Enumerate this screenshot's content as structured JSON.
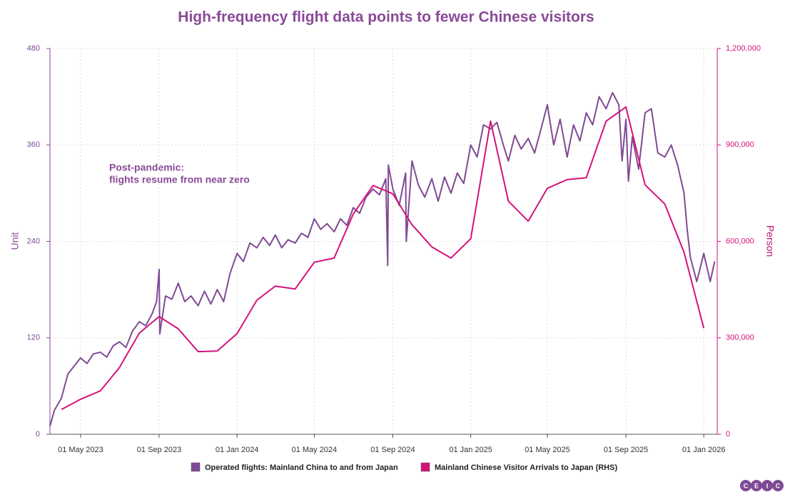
{
  "chart_data": {
    "type": "line",
    "title": "High-frequency flight data points to fewer Chinese visitors",
    "annotations": [
      "Post-pandemic:",
      "flights resume from near zero"
    ],
    "ylabel": "Unit",
    "y2label": "Person",
    "grid": true,
    "legend": "bottom",
    "logo": [
      "C",
      "E",
      "I",
      "C"
    ],
    "xlim": [
      "2023-03-14",
      "2026-01-22"
    ],
    "xticks": [
      {
        "value": "2023-05-01",
        "label": "01 May 2023"
      },
      {
        "value": "2023-09-01",
        "label": "01 Sep 2023"
      },
      {
        "value": "2024-01-01",
        "label": "01 Jan 2024"
      },
      {
        "value": "2024-05-01",
        "label": "01 May 2024"
      },
      {
        "value": "2024-09-01",
        "label": "01 Sep 2024"
      },
      {
        "value": "2025-01-01",
        "label": "01 Jan 2025"
      },
      {
        "value": "2025-05-01",
        "label": "01 May 2025"
      },
      {
        "value": "2025-09-01",
        "label": "01 Sep 2025"
      },
      {
        "value": "2026-01-01",
        "label": "01 Jan 2026"
      }
    ],
    "ylim": [
      0,
      480
    ],
    "yticks": [
      0,
      120,
      240,
      360,
      480
    ],
    "y2lim": [
      0,
      1200000
    ],
    "y2ticks": [
      0,
      {
        "value": 300000,
        "label": "300,000"
      },
      {
        "value": 600000,
        "label": "600,000"
      },
      {
        "value": 900000,
        "label": "900,000"
      },
      {
        "value": 1200000,
        "label": "1,200,000"
      }
    ],
    "series": [
      {
        "name": "Operated flights: Mainland China to and from Japan",
        "color": "#7f4a94",
        "x": [
          "2023-03-14",
          "2023-03-21",
          "2023-04-01",
          "2023-04-11",
          "2023-04-21",
          "2023-05-01",
          "2023-05-11",
          "2023-05-21",
          "2023-06-01",
          "2023-06-11",
          "2023-06-21",
          "2023-07-01",
          "2023-07-11",
          "2023-07-21",
          "2023-08-01",
          "2023-08-11",
          "2023-08-21",
          "2023-08-28",
          "2023-09-01",
          "2023-09-02",
          "2023-09-11",
          "2023-09-21",
          "2023-10-01",
          "2023-10-11",
          "2023-10-21",
          "2023-11-01",
          "2023-11-11",
          "2023-11-21",
          "2023-12-01",
          "2023-12-11",
          "2023-12-21",
          "2024-01-01",
          "2024-01-11",
          "2024-01-21",
          "2024-02-01",
          "2024-02-11",
          "2024-02-21",
          "2024-03-01",
          "2024-03-11",
          "2024-03-21",
          "2024-04-01",
          "2024-04-11",
          "2024-04-21",
          "2024-05-01",
          "2024-05-11",
          "2024-05-21",
          "2024-06-01",
          "2024-06-11",
          "2024-06-21",
          "2024-07-01",
          "2024-07-11",
          "2024-07-21",
          "2024-08-01",
          "2024-08-11",
          "2024-08-21",
          "2024-08-24",
          "2024-08-25",
          "2024-09-01",
          "2024-09-11",
          "2024-09-21",
          "2024-09-22",
          "2024-10-01",
          "2024-10-11",
          "2024-10-21",
          "2024-11-01",
          "2024-11-11",
          "2024-11-21",
          "2024-12-01",
          "2024-12-11",
          "2024-12-21",
          "2025-01-01",
          "2025-01-11",
          "2025-01-21",
          "2025-02-01",
          "2025-02-11",
          "2025-02-21",
          "2025-03-01",
          "2025-03-11",
          "2025-03-21",
          "2025-04-01",
          "2025-04-11",
          "2025-04-21",
          "2025-05-01",
          "2025-05-11",
          "2025-05-21",
          "2025-06-01",
          "2025-06-11",
          "2025-06-21",
          "2025-07-01",
          "2025-07-11",
          "2025-07-21",
          "2025-08-01",
          "2025-08-11",
          "2025-08-21",
          "2025-08-26",
          "2025-09-01",
          "2025-09-05",
          "2025-09-11",
          "2025-09-21",
          "2025-10-01",
          "2025-10-11",
          "2025-10-21",
          "2025-11-01",
          "2025-11-11",
          "2025-11-21",
          "2025-12-01",
          "2025-12-06",
          "2025-12-11",
          "2025-12-21",
          "2026-01-01",
          "2026-01-11",
          "2026-01-18"
        ],
        "values": [
          10,
          30,
          45,
          75,
          85,
          95,
          88,
          100,
          102,
          96,
          110,
          115,
          108,
          128,
          140,
          135,
          150,
          165,
          205,
          125,
          172,
          168,
          188,
          165,
          172,
          160,
          178,
          162,
          180,
          165,
          200,
          225,
          215,
          238,
          232,
          245,
          235,
          248,
          232,
          242,
          238,
          250,
          245,
          268,
          255,
          262,
          252,
          268,
          260,
          282,
          275,
          295,
          305,
          298,
          318,
          210,
          335,
          305,
          285,
          325,
          240,
          340,
          310,
          295,
          318,
          290,
          320,
          300,
          325,
          312,
          360,
          345,
          385,
          380,
          388,
          360,
          340,
          372,
          355,
          368,
          350,
          380,
          410,
          360,
          392,
          345,
          385,
          365,
          400,
          385,
          420,
          405,
          425,
          410,
          340,
          392,
          315,
          370,
          330,
          400,
          405,
          350,
          345,
          360,
          335,
          300,
          255,
          220,
          190,
          225,
          190,
          215
        ]
      },
      {
        "name": "Mainland Chinese Visitor Arrivals to Japan (RHS)",
        "color": "#d4127a",
        "axis": "y2",
        "x": [
          "2023-04-01",
          "2023-05-01",
          "2023-06-01",
          "2023-07-01",
          "2023-08-01",
          "2023-09-01",
          "2023-10-01",
          "2023-11-01",
          "2023-12-01",
          "2024-01-01",
          "2024-02-01",
          "2024-03-01",
          "2024-04-01",
          "2024-05-01",
          "2024-06-01",
          "2024-07-01",
          "2024-08-01",
          "2024-09-01",
          "2024-10-01",
          "2024-11-01",
          "2024-12-01",
          "2025-01-01",
          "2025-02-01",
          "2025-03-01",
          "2025-04-01",
          "2025-05-01",
          "2025-06-01",
          "2025-07-01",
          "2025-08-01",
          "2025-09-01",
          "2025-10-01",
          "2025-11-01",
          "2025-12-01",
          "2026-01-01"
        ],
        "values": [
          77000,
          109000,
          135000,
          208000,
          315000,
          366000,
          328000,
          257000,
          259000,
          313000,
          417000,
          461000,
          452000,
          535000,
          548000,
          685000,
          774000,
          748000,
          652000,
          583000,
          548000,
          608000,
          974000,
          725000,
          663000,
          765000,
          792000,
          798000,
          974000,
          1018000,
          776000,
          716000,
          566000,
          330000
        ]
      }
    ]
  }
}
